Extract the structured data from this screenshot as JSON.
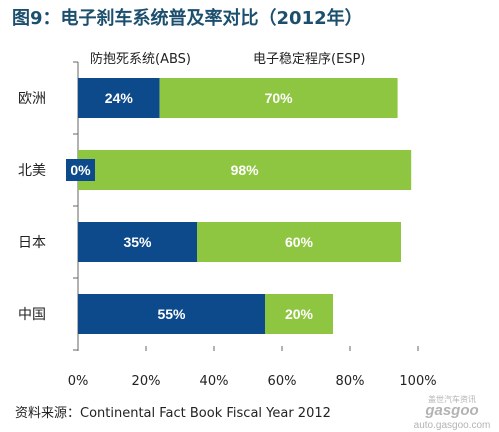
{
  "title": "图9：电子刹车系统普及率对比（2012年）",
  "title_color": "#1c4f6e",
  "axis_color": "#666666",
  "source": "资料来源：Continental Fact Book Fiscal Year 2012",
  "watermark": {
    "cn": "盖世汽车资讯",
    "brand": "gasgoo",
    "url": "auto.gasgoo.com"
  },
  "chart_data": {
    "type": "bar",
    "orientation": "horizontal",
    "stacked": true,
    "categories": [
      "欧洲",
      "北美",
      "日本",
      "中国"
    ],
    "series": [
      {
        "name": "防抱死系统(ABS)",
        "values": [
          24,
          0,
          35,
          55
        ],
        "color": "#0d4a8c"
      },
      {
        "name": "电子稳定程序(ESP)",
        "values": [
          70,
          98,
          60,
          20
        ],
        "color": "#8fc641"
      }
    ],
    "unit": "%",
    "x_ticks": [
      0,
      20,
      40,
      60,
      80,
      100
    ],
    "x_tick_labels": [
      "0%",
      "20%",
      "40%",
      "60%",
      "80%",
      "100%"
    ],
    "xlim": [
      0,
      100
    ],
    "xlabel": "",
    "ylabel": "",
    "legend_position": "top",
    "grid": false
  }
}
